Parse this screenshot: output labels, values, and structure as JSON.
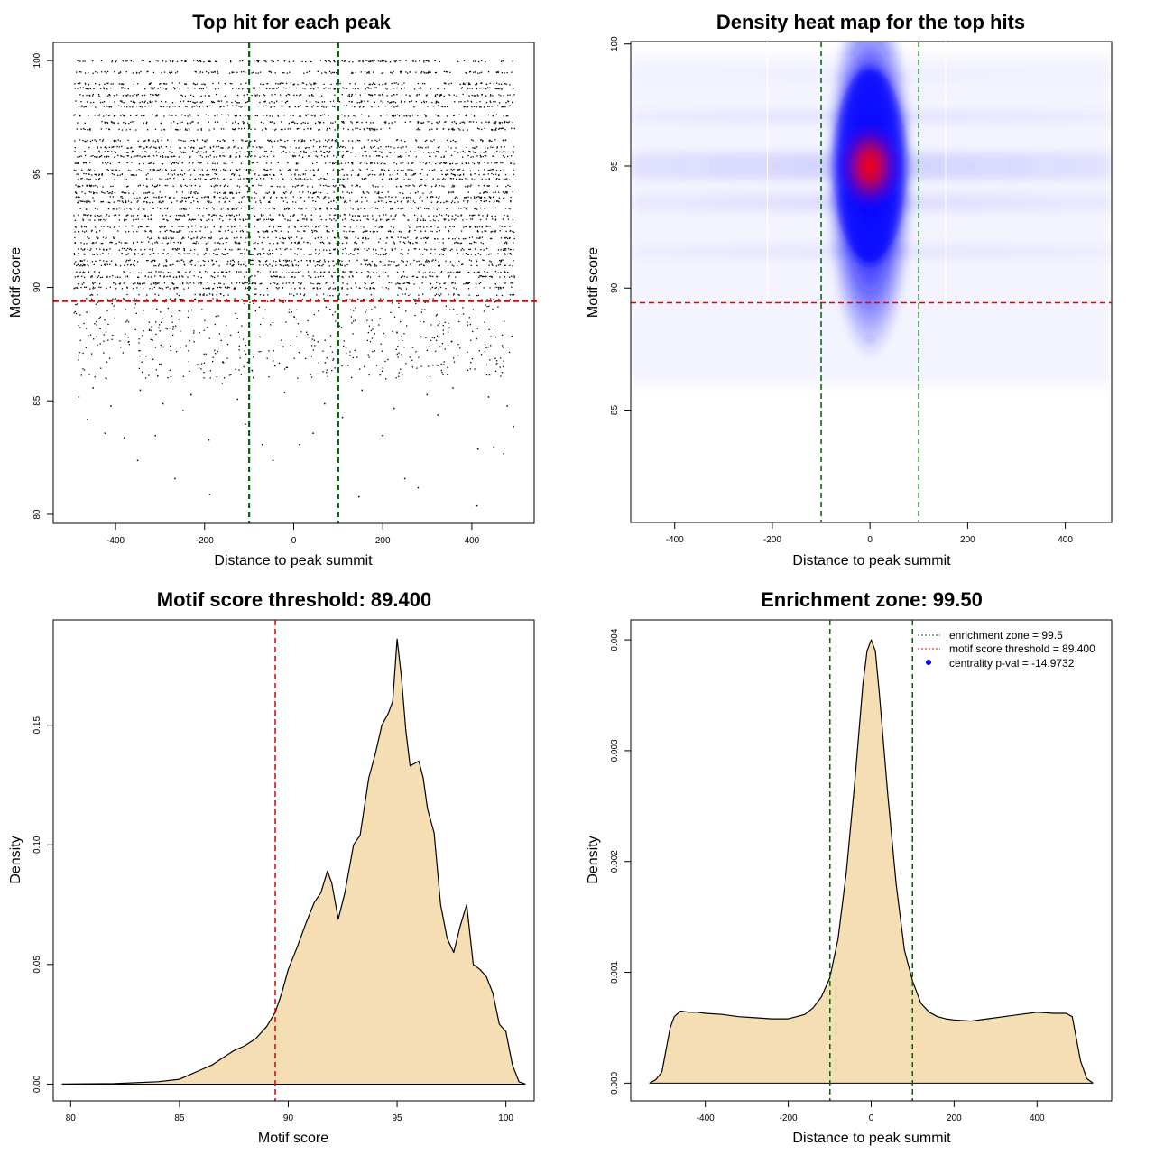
{
  "chart_data": [
    {
      "id": "scatter",
      "type": "scatter",
      "title": "Top hit for each peak",
      "xlabel": "Distance to peak summit",
      "ylabel": "Motif score",
      "xlim": [
        -540,
        540
      ],
      "ylim": [
        79.6,
        100.8
      ],
      "xticks": [
        -400,
        -200,
        0,
        200,
        400
      ],
      "yticks": [
        80,
        85,
        90,
        95,
        100
      ],
      "grid": false,
      "x_range_of_points": [
        -495,
        495
      ],
      "dense_score_levels": [
        100,
        99.5,
        99,
        98.8,
        98.5,
        98.2,
        98,
        97.6,
        97.3,
        97,
        96.5,
        96.2,
        96,
        95.8,
        95.5,
        95.2,
        95,
        94.8,
        94.5,
        94.2,
        94,
        93.8,
        93.5,
        93.2,
        93,
        92.7,
        92.5,
        92.2,
        92,
        91.7,
        91.5,
        91.2,
        91,
        90.7,
        90.5,
        90.2,
        90,
        89.7,
        89.5
      ],
      "sparse_points": [
        [
          -352,
          82.4
        ],
        [
          -268,
          81.6
        ],
        [
          -190,
          80.9
        ],
        [
          -48,
          82.4
        ],
        [
          12,
          83.1
        ],
        [
          145,
          80.8
        ],
        [
          248,
          81.6
        ],
        [
          278,
          81.2
        ],
        [
          412,
          82.9
        ],
        [
          448,
          83.0
        ],
        [
          470,
          82.7
        ],
        [
          410,
          80.4
        ],
        [
          -465,
          84.2
        ],
        [
          -425,
          83.6
        ],
        [
          -382,
          83.4
        ],
        [
          -312,
          83.5
        ],
        [
          -250,
          84.6
        ],
        [
          -192,
          83.3
        ],
        [
          -110,
          84.0
        ],
        [
          -72,
          83.1
        ],
        [
          42,
          83.6
        ],
        [
          108,
          84.3
        ],
        [
          198,
          83.5
        ],
        [
          322,
          84.4
        ],
        [
          492,
          83.9
        ],
        [
          -484,
          85.2
        ],
        [
          -452,
          85.6
        ],
        [
          -412,
          84.8
        ],
        [
          -346,
          85.5
        ],
        [
          -295,
          84.9
        ],
        [
          -232,
          85.3
        ],
        [
          -162,
          85.8
        ],
        [
          -128,
          85.1
        ],
        [
          -22,
          85.4
        ],
        [
          68,
          84.9
        ],
        [
          152,
          85.5
        ],
        [
          224,
          84.7
        ],
        [
          298,
          85.3
        ],
        [
          356,
          85.6
        ],
        [
          436,
          85.2
        ],
        [
          478,
          84.8
        ]
      ],
      "hlines": [
        {
          "y": 89.4,
          "color": "#dd0000",
          "style": "dashed"
        }
      ],
      "vlines": [
        {
          "x": -100,
          "color": "#006400",
          "style": "dashed"
        },
        {
          "x": 100,
          "color": "#006400",
          "style": "dashed"
        }
      ]
    },
    {
      "id": "heatmap",
      "type": "heatmap",
      "title": "Density heat map for the top hits",
      "xlabel": "Distance to peak summit",
      "ylabel": "Motif score",
      "xlim": [
        -490,
        495
      ],
      "ylim": [
        80.4,
        100.1
      ],
      "xticks": [
        -400,
        -200,
        0,
        200,
        400
      ],
      "yticks": [
        85,
        90,
        95,
        100
      ],
      "colors": [
        "#ffffff",
        "#0000ff",
        "#ff0000"
      ],
      "peak": {
        "x": 0,
        "y": 95
      },
      "hlines": [
        {
          "y": 89.4,
          "color": "#dd0000",
          "style": "dashed"
        }
      ],
      "vlines": [
        {
          "x": -100,
          "color": "#006400",
          "style": "dashed"
        },
        {
          "x": 100,
          "color": "#006400",
          "style": "dashed"
        }
      ]
    },
    {
      "id": "score_density",
      "type": "area",
      "title": "Motif score threshold: 89.400",
      "xlabel": "Motif score",
      "ylabel": "Density",
      "xlim": [
        79.2,
        101.3
      ],
      "ylim": [
        -0.007,
        0.194
      ],
      "xticks": [
        80,
        85,
        90,
        95,
        100
      ],
      "yticks": [
        0.0,
        0.05,
        0.1,
        0.15
      ],
      "ytick_labels": [
        "0.00",
        "0.05",
        "0.10",
        "0.15"
      ],
      "fill": "#f5deb3",
      "x": [
        79.6,
        82,
        84,
        85,
        85.5,
        86,
        86.5,
        87,
        87.5,
        88,
        88.5,
        89,
        89.4,
        89.7,
        90,
        90.4,
        90.8,
        91.2,
        91.5,
        91.8,
        92,
        92.3,
        92.6,
        93,
        93.3,
        93.7,
        94,
        94.3,
        94.6,
        94.8,
        95,
        95.2,
        95.4,
        95.6,
        95.8,
        96,
        96.2,
        96.4,
        96.7,
        97,
        97.3,
        97.6,
        97.9,
        98.2,
        98.5,
        98.8,
        99.1,
        99.4,
        99.7,
        100,
        100.3,
        100.6,
        100.9
      ],
      "y": [
        0.0,
        0.0002,
        0.001,
        0.002,
        0.004,
        0.006,
        0.008,
        0.011,
        0.014,
        0.016,
        0.019,
        0.024,
        0.03,
        0.038,
        0.048,
        0.057,
        0.067,
        0.076,
        0.08,
        0.089,
        0.084,
        0.069,
        0.08,
        0.1,
        0.104,
        0.128,
        0.138,
        0.15,
        0.155,
        0.16,
        0.186,
        0.17,
        0.148,
        0.133,
        0.134,
        0.135,
        0.128,
        0.115,
        0.105,
        0.075,
        0.061,
        0.055,
        0.066,
        0.075,
        0.05,
        0.048,
        0.045,
        0.038,
        0.025,
        0.022,
        0.008,
        0.001,
        0.0
      ],
      "vlines": [
        {
          "x": 89.4,
          "color": "#dd0000",
          "style": "dashed"
        }
      ]
    },
    {
      "id": "distance_density",
      "type": "area",
      "title": "Enrichment zone: 99.50",
      "xlabel": "Distance to peak summit",
      "ylabel": "Density",
      "xlim": [
        -580,
        580
      ],
      "ylim": [
        -0.00016,
        0.00418
      ],
      "xticks": [
        -400,
        -200,
        0,
        200,
        400
      ],
      "yticks": [
        0.0,
        0.001,
        0.002,
        0.003,
        0.004
      ],
      "ytick_labels": [
        "0.000",
        "0.001",
        "0.002",
        "0.003",
        "0.004"
      ],
      "fill": "#f5deb3",
      "x": [
        -535,
        -520,
        -505,
        -495,
        -485,
        -475,
        -460,
        -440,
        -420,
        -400,
        -360,
        -320,
        -280,
        -240,
        -200,
        -180,
        -160,
        -140,
        -120,
        -100,
        -80,
        -60,
        -40,
        -20,
        -10,
        0,
        10,
        20,
        40,
        60,
        80,
        100,
        120,
        140,
        160,
        180,
        200,
        240,
        280,
        320,
        360,
        400,
        440,
        470,
        485,
        495,
        505,
        520,
        535
      ],
      "y": [
        0.0,
        3e-05,
        0.0001,
        0.0003,
        0.0005,
        0.0006,
        0.00065,
        0.00064,
        0.00064,
        0.00063,
        0.00062,
        0.0006,
        0.00059,
        0.00058,
        0.00058,
        0.0006,
        0.00062,
        0.00068,
        0.00078,
        0.00095,
        0.0013,
        0.0019,
        0.0027,
        0.0036,
        0.0039,
        0.004,
        0.0039,
        0.0035,
        0.0026,
        0.0018,
        0.0012,
        0.00092,
        0.00072,
        0.00064,
        0.0006,
        0.00058,
        0.00057,
        0.00056,
        0.00058,
        0.0006,
        0.00062,
        0.00064,
        0.00063,
        0.00063,
        0.0006,
        0.0004,
        0.0002,
        4e-05,
        0.0
      ],
      "vlines": [
        {
          "x": -99.5,
          "color": "#006400",
          "style": "dashed"
        },
        {
          "x": 99.5,
          "color": "#006400",
          "style": "dashed"
        }
      ],
      "legend": {
        "position": "top-right",
        "entries": [
          {
            "label": "enrichment zone = 99.5",
            "color": "#006400",
            "symbol": "line"
          },
          {
            "label": "motif score threshold = 89.400",
            "color": "#dd0000",
            "symbol": "line"
          },
          {
            "label": "centrality p-val = -14.9732",
            "color": "#0000ff",
            "symbol": "dot"
          }
        ]
      }
    }
  ]
}
